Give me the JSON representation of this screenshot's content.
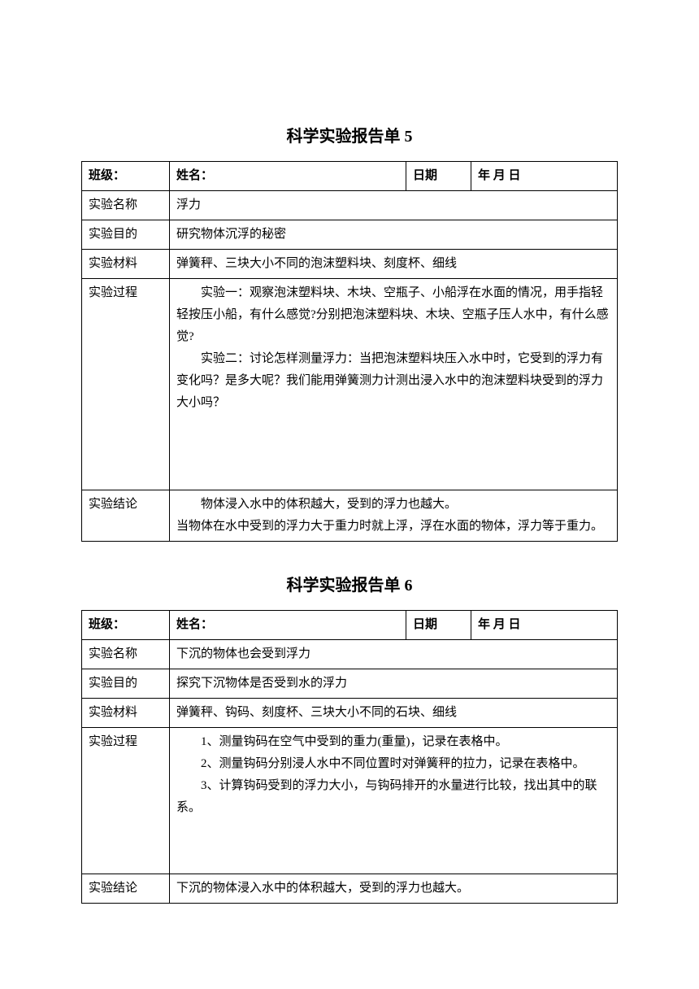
{
  "report5": {
    "title": "科学实验报告单 5",
    "header": {
      "class_label": "班级：",
      "name_label": "姓名：",
      "date_label": "日期",
      "date_value": "年   月   日"
    },
    "rows": {
      "name_label": "实验名称",
      "name_value": "浮力",
      "purpose_label": "实验目的",
      "purpose_value": "研究物体沉浮的秘密",
      "materials_label": "实验材料",
      "materials_value": "弹簧秤、三块大小不同的泡沫塑料块、刻度杯、细线",
      "process_label": "实验过程",
      "process_p1": "实验一：观察泡沫塑料块、木块、空瓶子、小船浮在水面的情况，用手指轻轻按压小船，有什么感觉?分别把泡沫塑料块、木块、空瓶子压人水中，有什么感觉?",
      "process_p2": "实验二：讨论怎样测量浮力：当把泡沫塑料块压入水中时，它受到的浮力有变化吗？是多大呢？我们能用弹簧测力计测出浸入水中的泡沫塑料块受到的浮力大小吗？",
      "conclusion_label": "实验结论",
      "conclusion_p1": "物体浸入水中的体积越大，受到的浮力也越大。",
      "conclusion_p2": "当物体在水中受到的浮力大于重力时就上浮，浮在水面的物体，浮力等于重力。"
    }
  },
  "report6": {
    "title": "科学实验报告单 6",
    "header": {
      "class_label": "班级：",
      "name_label": "姓名：",
      "date_label": "日期",
      "date_value": "年   月   日"
    },
    "rows": {
      "name_label": "实验名称",
      "name_value": "下沉的物体也会受到浮力",
      "purpose_label": "实验目的",
      "purpose_value": "探究下沉物体是否受到水的浮力",
      "materials_label": "实验材料",
      "materials_value": "弹簧秤、钩码、刻度杯、三块大小不同的石块、细线",
      "process_label": "实验过程",
      "process_p1": "1、测量钩码在空气中受到的重力(重量)，记录在表格中。",
      "process_p2": "2、测量钩码分别浸人水中不同位置时对弹簧秤的拉力，记录在表格中。",
      "process_p3": "3、计算钩码受到的浮力大小，与钩码排开的水量进行比较，找出其中的联系。",
      "conclusion_label": "实验结论",
      "conclusion_value": "下沉的物体浸入水中的体积越大，受到的浮力也越大。"
    }
  }
}
